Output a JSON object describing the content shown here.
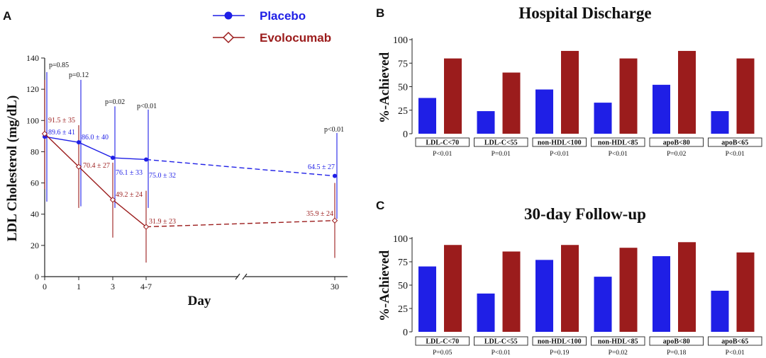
{
  "panels": {
    "a_letter": "A",
    "b_letter": "B",
    "c_letter": "C"
  },
  "colors": {
    "placebo": "#1f1fe6",
    "evolocumab": "#9b1c1c"
  },
  "chart_data": [
    {
      "type": "line",
      "panel": "A",
      "xlabel": "Day",
      "ylabel": "LDL Cholesterol (mg/dL)",
      "ylim": [
        0,
        140
      ],
      "yticks": [
        0,
        20,
        40,
        60,
        80,
        100,
        120,
        140
      ],
      "categories": [
        "0",
        "1",
        "3",
        "4-7",
        "30"
      ],
      "axis_break": true,
      "legend_position": "top-center",
      "series": [
        {
          "name": "Placebo",
          "marker": "circle",
          "values": [
            89.6,
            86.0,
            76.1,
            75.0,
            64.5
          ],
          "err_low": [
            48,
            45,
            44,
            44,
            37
          ],
          "err_high": [
            131,
            126,
            109,
            107,
            92
          ],
          "labels": [
            "89.6 ± 41",
            "86.0 ± 40",
            "76.1 ± 33",
            "75.0 ± 32",
            "64.5 ± 27"
          ]
        },
        {
          "name": "Evolocumab",
          "marker": "diamond",
          "values": [
            91.5,
            70.4,
            49.2,
            31.9,
            35.9
          ],
          "err_low": [
            56,
            44,
            25,
            9,
            12
          ],
          "err_high": [
            126,
            97,
            73,
            55,
            60
          ],
          "labels": [
            "91.5 ± 35",
            "70.4 ± 27",
            "49.2 ± 24",
            "31.9 ± 23",
            "35.9 ± 24"
          ]
        }
      ],
      "p_values": [
        "p=0.85",
        "p=0.12",
        "p=0.02",
        "p<0.01",
        "p<0.01"
      ]
    },
    {
      "type": "bar",
      "panel": "B",
      "title": "Hospital Discharge",
      "ylabel": "%-Achieved",
      "ylim": [
        0,
        100
      ],
      "yticks": [
        0,
        25,
        50,
        75,
        100
      ],
      "categories": [
        "LDL-C<70",
        "LDL-C<55",
        "non-HDL<100",
        "non-HDL<85",
        "apoB<80",
        "apoB<65"
      ],
      "p_values": [
        "P<0.01",
        "P=0.01",
        "P<0.01",
        "P<0.01",
        "P=0.02",
        "P<0.01"
      ],
      "series": [
        {
          "values": [
            38,
            24,
            47,
            33,
            52,
            24
          ]
        },
        {
          "values": [
            80,
            65,
            88,
            80,
            88,
            80
          ]
        }
      ]
    },
    {
      "type": "bar",
      "panel": "C",
      "title": "30-day Follow-up",
      "ylabel": "%-Achieved",
      "ylim": [
        0,
        100
      ],
      "yticks": [
        0,
        25,
        50,
        75,
        100
      ],
      "categories": [
        "LDL-C<70",
        "LDL-C<55",
        "non-HDL<100",
        "non-HDL<85",
        "apoB<80",
        "apoB<65"
      ],
      "p_values": [
        "P=0.05",
        "P<0.01",
        "P=0.19",
        "P=0.02",
        "P=0.18",
        "P<0.01"
      ],
      "series": [
        {
          "values": [
            70,
            41,
            77,
            59,
            81,
            44
          ]
        },
        {
          "values": [
            93,
            86,
            93,
            90,
            96,
            85
          ]
        }
      ]
    }
  ]
}
